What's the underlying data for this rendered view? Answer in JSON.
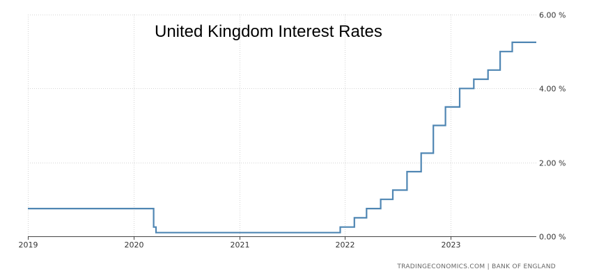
{
  "chart_data": {
    "type": "line",
    "title": "United Kingdom Interest Rates",
    "xlabel": "",
    "ylabel": "",
    "x_ticks": [
      "2019",
      "2020",
      "2021",
      "2022",
      "2023"
    ],
    "y_ticks": [
      "0.00 %",
      "2.00 %",
      "4.00 %",
      "6.00 %"
    ],
    "ylim": [
      0,
      6
    ],
    "xlim": [
      "2019-01-01",
      "2023-10-25"
    ],
    "step": true,
    "grid": true,
    "line_color": "#4f86b3",
    "series": [
      {
        "name": "",
        "x": [
          "2019-01-01",
          "2020-03-11",
          "2020-03-19",
          "2021-12-16",
          "2022-02-03",
          "2022-03-17",
          "2022-05-05",
          "2022-06-16",
          "2022-08-04",
          "2022-09-22",
          "2022-11-03",
          "2022-12-15",
          "2023-02-02",
          "2023-03-23",
          "2023-05-11",
          "2023-06-22",
          "2023-08-03",
          "2023-10-25"
        ],
        "values": [
          0.75,
          0.25,
          0.1,
          0.25,
          0.5,
          0.75,
          1.0,
          1.25,
          1.75,
          2.25,
          3.0,
          3.5,
          4.0,
          4.25,
          4.5,
          5.0,
          5.25,
          5.25
        ]
      }
    ]
  },
  "source": "TRADINGECONOMICS.COM  |  BANK OF ENGLAND"
}
